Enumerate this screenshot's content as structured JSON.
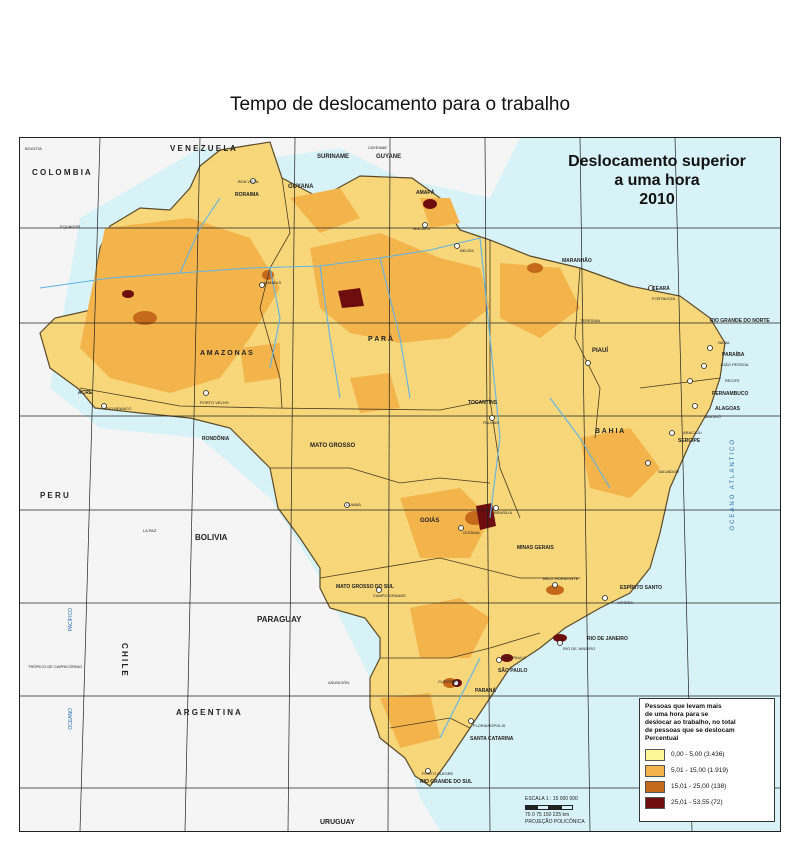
{
  "title": "Tempo de deslocamento para o trabalho",
  "inset": {
    "line1": "Deslocamento superior",
    "line2": "a uma hora",
    "year": "2010"
  },
  "legend": {
    "title_l1": "Pessoas que levam mais",
    "title_l2": "de uma hora para se",
    "title_l3": "deslocar ao trabalho, no total",
    "title_l4": "de pessoas que se deslocam",
    "title_l5": "Percentual",
    "classes": [
      {
        "label": "0,00 - 5,00 (3.436)",
        "color": "#fdf79a"
      },
      {
        "label": "5,01 - 15,00 (1.919)",
        "color": "#f4b44c"
      },
      {
        "label": "15,01 - 25,00 (138)",
        "color": "#c56a1b"
      },
      {
        "label": "25,01 - 53,55 (72)",
        "color": "#6e0d0d"
      }
    ]
  },
  "scale": {
    "text": "ESCALA 1 : 15 000 000",
    "ticks": "75 0 75 150 225 km",
    "projection": "PROJEÇÃO POLICÔNICA"
  },
  "countries": {
    "venezuela": "V E N E Z U E L A",
    "colombia": "C O L O M B I A",
    "suriname": "SURINAME",
    "guyane": "GUYANE",
    "guyana": "GUYANA",
    "peru": "P E R U",
    "bolivia": "BOLIVIA",
    "paraguay": "PARAGUAY",
    "argentina": "A R G E N T I N A",
    "chile": "C H I L E",
    "uruguay": "URUGUAY",
    "cayenne": "CAYENNE",
    "bogota": "BOGOTA",
    "lapaz": "LA PAZ",
    "asuncion": "ASUNCIÓN"
  },
  "states": {
    "roraima": "RORAIMA",
    "amapa": "AMAPÁ",
    "amazonas": "A M A Z O N A S",
    "para": "P A R Á",
    "maranhao": "MARANHÃO",
    "ceara": "CEARÁ",
    "rgn": "RIO GRANDE DO NORTE",
    "paraiba": "PARAÍBA",
    "pernambuco": "PERNAMBUCO",
    "alagoas": "ALAGOAS",
    "sergipe": "SERGIPE",
    "piaui": "PIAUÍ",
    "bahia": "B A H I A",
    "tocantins": "TOCANTINS",
    "acre": "ACRE",
    "rondonia": "RONDÔNIA",
    "matogrosso": "MATO GROSSO",
    "goias": "GOIÁS",
    "mg": "MINAS GERAIS",
    "es": "ESPÍRITO SANTO",
    "ms": "MATO GROSSO DO SUL",
    "sp": "SÃO PAULO",
    "rj": "RIO DE JANEIRO",
    "parana": "PARANÁ",
    "sc": "SANTA CATARINA",
    "rs": "RIO GRANDE DO SUL"
  },
  "cities": {
    "boavista": "BOA VISTA",
    "macapa": "MACAPÁ",
    "manaus": "MANAUS",
    "belem": "BELÉM",
    "fortaleza": "FORTALEZA",
    "natal": "NATAL",
    "joaopessoa": "JOÃO PESSOA",
    "recife": "RECIFE",
    "maceio": "MACEIÓ",
    "aracaju": "ARACAJU",
    "salvador": "SALVADOR",
    "teresina": "TERESINA",
    "palmas": "PALMAS",
    "riobranco": "RIO BRANCO",
    "portovelho": "PORTO VELHO",
    "cuiaba": "CUIABÁ",
    "goiania": "GOIÂNIA",
    "brasilia": "BRASÍLIA",
    "bh": "BELO HORIZONTE",
    "vitoria": "VITÓRIA",
    "campogrande": "CAMPO GRANDE",
    "saopaulo": "SÃO PAULO",
    "riodejaneiro": "RIO DE JANEIRO",
    "curitiba": "CURITIBA",
    "florianopolis": "FLORIANÓPOLIS",
    "portoalegre": "PORTO ALEGRE"
  },
  "oceans": {
    "atlantico": "OCEANO ATLÂNTICO",
    "pacifico_a": "PACÍFICO",
    "pacifico_b": "OCEANO",
    "equador": "EQUADOR",
    "tropico": "TRÓPICO DE CAPRICÓRNIO"
  }
}
